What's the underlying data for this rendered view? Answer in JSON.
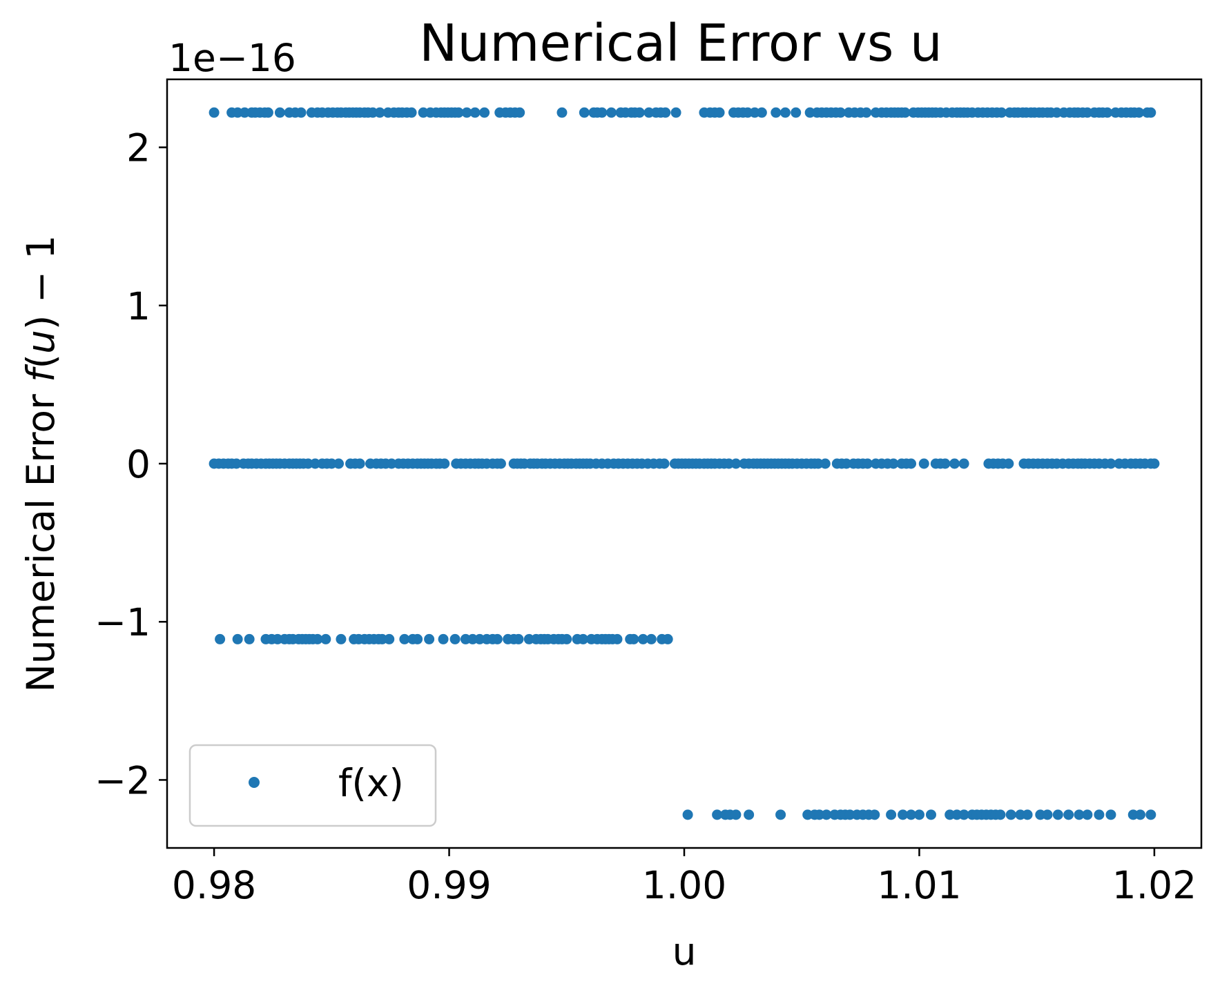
{
  "chart_data": {
    "type": "scatter",
    "title": "Numerical Error vs u",
    "xlabel": "u",
    "ylabel": {
      "prefix": "Numerical Error ",
      "func": "f",
      "open": "(",
      "arg": "u",
      "close": ")",
      "suffix": " − 1"
    },
    "y_offset_label": "1e−16",
    "xlim": [
      0.978,
      1.022
    ],
    "ylim": [
      -2.43,
      2.43
    ],
    "x_ticks": [
      0.98,
      0.99,
      1.0,
      1.01,
      1.02
    ],
    "x_tick_labels": [
      "0.98",
      "0.99",
      "1.00",
      "1.01",
      "1.02"
    ],
    "y_ticks": [
      2,
      1,
      0,
      -1,
      -2
    ],
    "y_tick_labels": [
      "2",
      "1",
      "0",
      "−1",
      "−2"
    ],
    "grid": false,
    "legend": {
      "position": "lower-left",
      "entries": [
        "f(x)"
      ]
    },
    "series_color": "#1f77b4",
    "series": [
      {
        "name": "f(x)",
        "points": [
          {
            "y": 2.22,
            "x": [
              0.98,
              0.98075,
              0.981,
              0.9813,
              0.9816,
              0.98175,
              0.98195,
              0.98215,
              0.9823,
              0.9828,
              0.9832,
              0.98345,
              0.9837,
              0.98415,
              0.9844,
              0.9846,
              0.98485,
              0.98505,
              0.98525,
              0.9854,
              0.9856,
              0.98575,
              0.9859,
              0.98605,
              0.9862,
              0.9864,
              0.98655,
              0.98675,
              0.98705,
              0.9874,
              0.98765,
              0.98785,
              0.988,
              0.9882,
              0.9884,
              0.9889,
              0.9892,
              0.98945,
              0.98965,
              0.9898,
              0.98995,
              0.9901,
              0.99025,
              0.9904,
              0.99075,
              0.9911,
              0.9915,
              0.99215,
              0.9924,
              0.9926,
              0.9928,
              0.993,
              0.9948,
              0.99575,
              0.99615,
              0.9963,
              0.9965,
              0.9969,
              0.9973,
              0.9975,
              0.99775,
              0.9979,
              0.9981,
              0.9985,
              0.9988,
              0.999,
              0.9992,
              0.99965,
              1.00085,
              1.0011,
              1.0013,
              1.0015,
              1.0021,
              1.0023,
              1.0025,
              1.0027,
              1.003,
              1.0033,
              1.0039,
              1.0043,
              1.00475,
              1.00535,
              1.00565,
              1.00585,
              1.00605,
              1.00625,
              1.00645,
              1.00665,
              1.007,
              1.00725,
              1.0075,
              1.00775,
              1.00815,
              1.0084,
              1.0086,
              1.0088,
              1.00895,
              1.0091,
              1.00925,
              1.0094,
              1.00975,
              1.00995,
              1.0101,
              1.01025,
              1.0104,
              1.01055,
              1.0107,
              1.0109,
              1.01115,
              1.0114,
              1.0116,
              1.01175,
              1.0119,
              1.01205,
              1.01225,
              1.0125,
              1.0127,
              1.0129,
              1.0131,
              1.0133,
              1.0135,
              1.01385,
              1.01405,
              1.0142,
              1.0144,
              1.01455,
              1.01475,
              1.0149,
              1.0151,
              1.01525,
              1.01545,
              1.0156,
              1.01585,
              1.01615,
              1.0164,
              1.0166,
              1.01675,
              1.01695,
              1.01715,
              1.01745,
              1.01765,
              1.0178,
              1.018,
              1.01835,
              1.0186,
              1.0188,
              1.019,
              1.01915,
              1.01935,
              1.0197,
              1.01985
            ]
          },
          {
            "y": 0.0,
            "x": [
              0.98,
              0.9802,
              0.9804,
              0.9806,
              0.98075,
              0.98095,
              0.98125,
              0.98145,
              0.9816,
              0.9818,
              0.982,
              0.9822,
              0.98235,
              0.9825,
              0.98265,
              0.9828,
              0.983,
              0.9832,
              0.98335,
              0.9835,
              0.98365,
              0.9838,
              0.984,
              0.9843,
              0.9846,
              0.9848,
              0.985,
              0.9853,
              0.9858,
              0.986,
              0.9862,
              0.98665,
              0.9869,
              0.9871,
              0.9873,
              0.98755,
              0.98785,
              0.98805,
              0.98825,
              0.98845,
              0.98865,
              0.9888,
              0.98895,
              0.9891,
              0.98925,
              0.98945,
              0.9896,
              0.9898,
              0.9903,
              0.9905,
              0.9907,
              0.9909,
              0.9911,
              0.99125,
              0.9914,
              0.9916,
              0.99185,
              0.99205,
              0.9922,
              0.99275,
              0.9929,
              0.99305,
              0.9932,
              0.99345,
              0.9936,
              0.99375,
              0.99395,
              0.9941,
              0.9943,
              0.9945,
              0.9947,
              0.9949,
              0.99505,
              0.9952,
              0.9954,
              0.99555,
              0.9957,
              0.99585,
              0.996,
              0.99625,
              0.9965,
              0.99675,
              0.997,
              0.9972,
              0.9974,
              0.9976,
              0.9978,
              0.998,
              0.9982,
              0.99845,
              0.9987,
              0.99895,
              0.99915,
              0.9996,
              0.99975,
              0.9999,
              1.00005,
              1.0002,
              1.00035,
              1.0005,
              1.00065,
              1.00085,
              1.001,
              1.00115,
              1.0013,
              1.0015,
              1.0017,
              1.0019,
              1.0022,
              1.00255,
              1.00275,
              1.00295,
              1.0031,
              1.00325,
              1.0034,
              1.00355,
              1.0037,
              1.00385,
              1.004,
              1.00415,
              1.0043,
              1.00445,
              1.0046,
              1.0048,
              1.005,
              1.0052,
              1.0054,
              1.00555,
              1.0057,
              1.006,
              1.0065,
              1.0067,
              1.0069,
              1.0072,
              1.0074,
              1.0076,
              1.0078,
              1.00815,
              1.0084,
              1.00865,
              1.0089,
              1.00925,
              1.00945,
              1.00965,
              1.0102,
              1.0107,
              1.0109,
              1.0111,
              1.0115,
              1.0119,
              1.01295,
              1.01315,
              1.01335,
              1.01355,
              1.0138,
              1.01445,
              1.01465,
              1.01485,
              1.01505,
              1.01525,
              1.01545,
              1.01565,
              1.01585,
              1.0161,
              1.01635,
              1.01655,
              1.01675,
              1.0169,
              1.01705,
              1.01725,
              1.01745,
              1.01765,
              1.0179,
              1.01815,
              1.0185,
              1.01875,
              1.019,
              1.0192,
              1.0194,
              1.0196,
              1.01985,
              1.02
            ]
          },
          {
            "y": -1.11,
            "x": [
              0.98025,
              0.981,
              0.9815,
              0.9822,
              0.98245,
              0.9827,
              0.983,
              0.9832,
              0.98335,
              0.9836,
              0.98375,
              0.9839,
              0.98405,
              0.9842,
              0.9844,
              0.98475,
              0.9854,
              0.98595,
              0.98615,
              0.9864,
              0.9866,
              0.9868,
              0.987,
              0.98715,
              0.98745,
              0.9881,
              0.98845,
              0.98865,
              0.98915,
              0.98975,
              0.99025,
              0.9907,
              0.991,
              0.9913,
              0.9916,
              0.99185,
              0.99205,
              0.9925,
              0.99275,
              0.99295,
              0.9934,
              0.9937,
              0.9939,
              0.99405,
              0.9942,
              0.99445,
              0.99465,
              0.9948,
              0.995,
              0.99545,
              0.9957,
              0.99605,
              0.9963,
              0.9965,
              0.99665,
              0.9968,
              0.99695,
              0.99715,
              0.9977,
              0.99785,
              0.99825,
              0.9986,
              0.99905,
              0.9993
            ]
          },
          {
            "y": -2.22,
            "x": [
              1.00015,
              1.0014,
              1.00175,
              1.00195,
              1.0022,
              1.00275,
              1.0041,
              1.00525,
              1.00555,
              1.00575,
              1.00605,
              1.0064,
              1.00665,
              1.00685,
              1.00705,
              1.00735,
              1.0076,
              1.00785,
              1.0081,
              1.0088,
              1.0093,
              1.00965,
              1.01,
              1.0105,
              1.0113,
              1.0116,
              1.0119,
              1.01225,
              1.01245,
              1.01265,
              1.01285,
              1.01305,
              1.01325,
              1.01345,
              1.0139,
              1.0143,
              1.0146,
              1.01515,
              1.01545,
              1.0159,
              1.01635,
              1.0168,
              1.01715,
              1.01765,
              1.01815,
              1.0191,
              1.0194,
              1.01985
            ]
          }
        ]
      }
    ]
  }
}
